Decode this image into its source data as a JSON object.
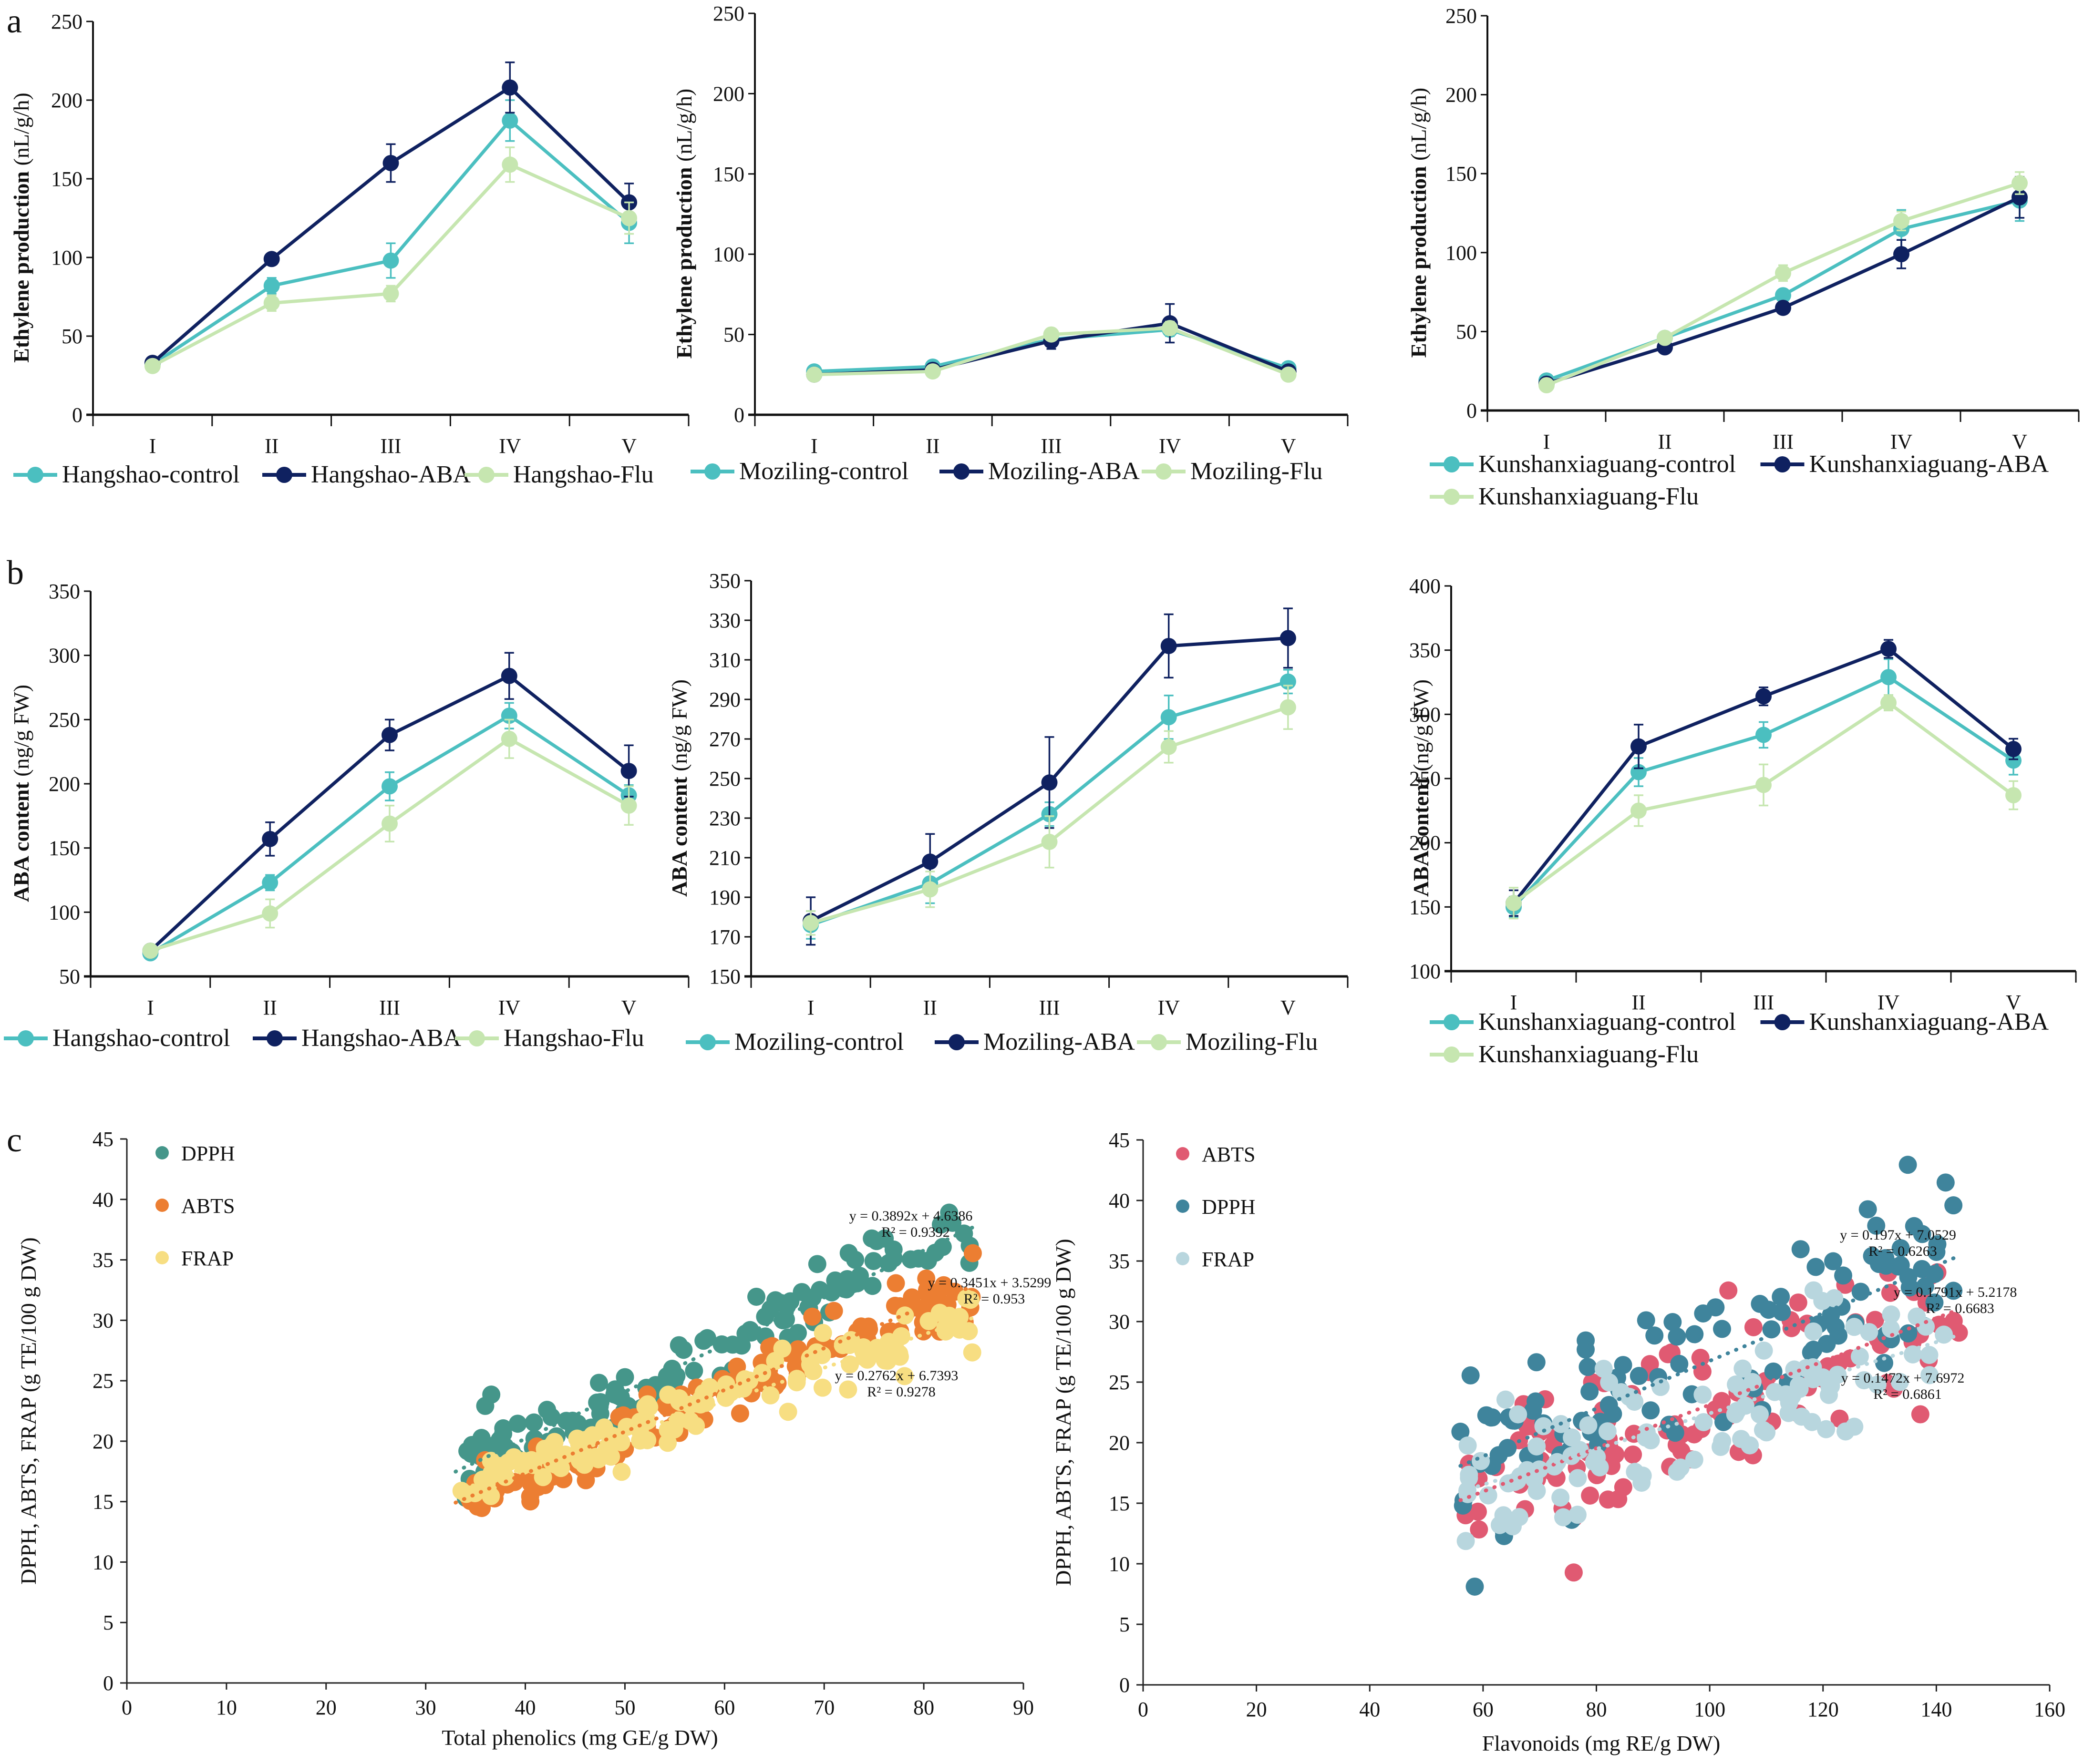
{
  "panel_labels": [
    "a",
    "b",
    "c"
  ],
  "line_series_colors": {
    "control": "#4BBFC0",
    "ABA": "#0F2160",
    "Flu": "#C6E6B0"
  },
  "chart_data": [
    {
      "id": "a1",
      "type": "line",
      "panel": "a",
      "ylabel_bold": "Ethylene production",
      "ylabel_unit": "(nL/g/h)",
      "categories": [
        "I",
        "II",
        "III",
        "IV",
        "V"
      ],
      "ylim": [
        0,
        250
      ],
      "yticks": [
        0,
        50,
        100,
        150,
        200,
        250
      ],
      "series": [
        {
          "name": "Hangshao-control",
          "key": "control",
          "values": [
            32,
            82,
            98,
            187,
            122
          ],
          "errors": [
            2,
            5,
            11,
            13,
            13
          ]
        },
        {
          "name": "Hangshao-ABA",
          "key": "ABA",
          "values": [
            33,
            99,
            160,
            208,
            135
          ],
          "errors": [
            2,
            3,
            12,
            16,
            12
          ]
        },
        {
          "name": "Hangshao-Flu",
          "key": "Flu",
          "values": [
            31,
            71,
            77,
            159,
            125
          ],
          "errors": [
            2,
            5,
            5,
            11,
            10
          ]
        }
      ],
      "legend": [
        "Hangshao-control",
        "Hangshao-ABA",
        "Hangshao-Flu"
      ]
    },
    {
      "id": "a2",
      "type": "line",
      "panel": "a",
      "ylabel_bold": "Ethylene production",
      "ylabel_unit": "(nL/g/h)",
      "categories": [
        "I",
        "II",
        "III",
        "IV",
        "V"
      ],
      "ylim": [
        0,
        250
      ],
      "yticks": [
        0,
        50,
        100,
        150,
        200,
        250
      ],
      "series": [
        {
          "name": "Moziling-control",
          "key": "control",
          "values": [
            27,
            30,
            47,
            53,
            29
          ],
          "errors": [
            2,
            2,
            3,
            4,
            2
          ]
        },
        {
          "name": "Moziling-ABA",
          "key": "ABA",
          "values": [
            25,
            28,
            46,
            57,
            27
          ],
          "errors": [
            2,
            2,
            5,
            12,
            2
          ]
        },
        {
          "name": "Moziling-Flu",
          "key": "Flu",
          "values": [
            25,
            27,
            50,
            54,
            25
          ],
          "errors": [
            2,
            2,
            3,
            4,
            2
          ]
        }
      ],
      "legend": [
        "Moziling-control",
        "Moziling-ABA",
        "Moziling-Flu"
      ]
    },
    {
      "id": "a3",
      "type": "line",
      "panel": "a",
      "ylabel_bold": "Ethylene production",
      "ylabel_unit": "(nL/g/h)",
      "categories": [
        "I",
        "II",
        "III",
        "IV",
        "V"
      ],
      "ylim": [
        0,
        250
      ],
      "yticks": [
        0,
        50,
        100,
        150,
        200,
        250
      ],
      "series": [
        {
          "name": "Kunshanxiaguang-control",
          "key": "control",
          "values": [
            19,
            46,
            73,
            115,
            133
          ],
          "errors": [
            2,
            2,
            3,
            12,
            13
          ]
        },
        {
          "name": "Kunshanxiaguang-ABA",
          "key": "ABA",
          "values": [
            17,
            40,
            65,
            99,
            135
          ],
          "errors": [
            2,
            2,
            2,
            9,
            13
          ]
        },
        {
          "name": "Kunshanxiaguang-Flu",
          "key": "Flu",
          "values": [
            16,
            46,
            87,
            120,
            144
          ],
          "errors": [
            2,
            2,
            5,
            6,
            7
          ]
        }
      ],
      "legend": [
        "Kunshanxiaguang-control",
        "Kunshanxiaguang-ABA",
        "Kunshanxiaguang-Flu"
      ]
    },
    {
      "id": "b1",
      "type": "line",
      "panel": "b",
      "ylabel_bold": "ABA content",
      "ylabel_unit": "(ng/g FW)",
      "categories": [
        "I",
        "II",
        "III",
        "IV",
        "V"
      ],
      "ylim": [
        50,
        350
      ],
      "yticks": [
        50,
        100,
        150,
        200,
        250,
        300,
        350
      ],
      "series": [
        {
          "name": "Hangshao-control",
          "key": "control",
          "values": [
            68,
            123,
            198,
            253,
            191
          ],
          "errors": [
            3,
            6,
            11,
            10,
            8
          ]
        },
        {
          "name": "Hangshao-ABA",
          "key": "ABA",
          "values": [
            70,
            157,
            238,
            284,
            210
          ],
          "errors": [
            3,
            13,
            12,
            18,
            20
          ]
        },
        {
          "name": "Hangshao-Flu",
          "key": "Flu",
          "values": [
            70,
            99,
            169,
            235,
            183
          ],
          "errors": [
            3,
            11,
            14,
            15,
            15
          ]
        }
      ],
      "legend": [
        "Hangshao-control",
        "Hangshao-ABA",
        "Hangshao-Flu"
      ]
    },
    {
      "id": "b2",
      "type": "line",
      "panel": "b",
      "ylabel_bold": "ABA content",
      "ylabel_unit": "(ng/g FW)",
      "categories": [
        "I",
        "II",
        "III",
        "IV",
        "V"
      ],
      "ylim": [
        150,
        350
      ],
      "yticks": [
        150,
        170,
        190,
        210,
        230,
        250,
        270,
        290,
        310,
        330,
        350
      ],
      "series": [
        {
          "name": "Moziling-control",
          "key": "control",
          "values": [
            176,
            197,
            232,
            281,
            299
          ],
          "errors": [
            7,
            10,
            6,
            11,
            6
          ]
        },
        {
          "name": "Moziling-ABA",
          "key": "ABA",
          "values": [
            178,
            208,
            248,
            317,
            321
          ],
          "errors": [
            12,
            14,
            23,
            16,
            15
          ]
        },
        {
          "name": "Moziling-Flu",
          "key": "Flu",
          "values": [
            177,
            194,
            218,
            266,
            286
          ],
          "errors": [
            6,
            9,
            13,
            8,
            11
          ]
        }
      ],
      "legend": [
        "Moziling-control",
        "Moziling-ABA",
        "Moziling-Flu"
      ]
    },
    {
      "id": "b3",
      "type": "line",
      "panel": "b",
      "ylabel_bold": "ABA content",
      "ylabel_unit": "(ng/g FW)",
      "categories": [
        "I",
        "II",
        "III",
        "IV",
        "V"
      ],
      "ylim": [
        100,
        400
      ],
      "yticks": [
        100,
        150,
        200,
        250,
        300,
        350,
        400
      ],
      "series": [
        {
          "name": "Kunshanxiaguang-control",
          "key": "control",
          "values": [
            150,
            255,
            284,
            329,
            264
          ],
          "errors": [
            8,
            11,
            10,
            14,
            11
          ]
        },
        {
          "name": "Kunshanxiaguang-ABA",
          "key": "ABA",
          "values": [
            153,
            275,
            314,
            351,
            273
          ],
          "errors": [
            10,
            17,
            7,
            7,
            8
          ]
        },
        {
          "name": "Kunshanxiaguang-Flu",
          "key": "Flu",
          "values": [
            153,
            225,
            245,
            309,
            237
          ],
          "errors": [
            12,
            12,
            16,
            6,
            11
          ]
        }
      ],
      "legend": [
        "Kunshanxiaguang-control",
        "Kunshanxiaguang-ABA",
        "Kunshanxiaguang-Flu"
      ]
    },
    {
      "id": "c1",
      "type": "scatter",
      "panel": "c",
      "xlabel": "Total phenolics (mg GE/g DW)",
      "ylabel": "DPPH, ABTS, FRAP (g TE/100 g DW)",
      "xlim": [
        0,
        90
      ],
      "xticks": [
        0,
        10,
        20,
        30,
        40,
        50,
        60,
        70,
        80,
        90
      ],
      "ylim": [
        0,
        45
      ],
      "yticks": [
        0,
        5,
        10,
        15,
        20,
        25,
        30,
        35,
        40,
        45
      ],
      "grid": false,
      "legend_position": "top-left",
      "series": [
        {
          "name": "DPPH",
          "color": "#45968A",
          "trendline": {
            "slope": 0.3892,
            "intercept": 4.6386,
            "x_range": [
              33,
              85
            ]
          },
          "equation": "y = 0.3892x + 4.6386",
          "r2": "R² = 0.9392",
          "seed": 11,
          "n": 130,
          "noise": 1.4,
          "x_range": [
            33,
            85
          ]
        },
        {
          "name": "ABTS",
          "color": "#EC7E32",
          "trendline": {
            "slope": 0.3451,
            "intercept": 3.5299,
            "x_range": [
              33,
              85
            ]
          },
          "equation": "y = 0.3451x + 3.5299",
          "r2": "R² = 0.953",
          "seed": 23,
          "n": 130,
          "noise": 1.2,
          "x_range": [
            33,
            85
          ]
        },
        {
          "name": "FRAP",
          "color": "#F7DE82",
          "trendline": {
            "slope": 0.2762,
            "intercept": 6.7393,
            "x_range": [
              33,
              85
            ]
          },
          "equation": "y = 0.2762x + 6.7393",
          "r2": "R² = 0.9278",
          "seed": 37,
          "n": 130,
          "noise": 1.2,
          "x_range": [
            33,
            85
          ]
        }
      ]
    },
    {
      "id": "c2",
      "type": "scatter",
      "panel": "c",
      "xlabel": "Flavonoids (mg RE/g DW)",
      "ylabel": "DPPH, ABTS, FRAP (g TE/100 g DW)",
      "xlim": [
        0,
        160
      ],
      "xticks": [
        0,
        20,
        40,
        60,
        80,
        100,
        120,
        140,
        160
      ],
      "ylim": [
        0,
        45
      ],
      "yticks": [
        0,
        5,
        10,
        15,
        20,
        25,
        30,
        35,
        40,
        45
      ],
      "grid": false,
      "legend_position": "top-left",
      "series": [
        {
          "name": "ABTS",
          "color": "#E05A72",
          "trendline": {
            "slope": 0.1791,
            "intercept": 5.2178,
            "x_range": [
              56,
              144
            ]
          },
          "equation": "y = 0.1791x + 5.2178",
          "r2": "R² = 0.6683",
          "seed": 51,
          "n": 110,
          "noise": 3.0,
          "x_range": [
            56,
            144
          ]
        },
        {
          "name": "DPPH",
          "color": "#3F849C",
          "trendline": {
            "slope": 0.197,
            "intercept": 7.0529,
            "x_range": [
              56,
              144
            ]
          },
          "equation": "y = 0.197x + 7.0529",
          "r2": "R² = 0.6263",
          "seed": 67,
          "n": 110,
          "noise": 3.6,
          "x_range": [
            56,
            144
          ]
        },
        {
          "name": "FRAP",
          "color": "#B8D6DE",
          "trendline": {
            "slope": 0.1472,
            "intercept": 7.6972,
            "x_range": [
              56,
              144
            ]
          },
          "equation": "y = 0.1472x + 7.6972",
          "r2": "R² = 0.6861",
          "seed": 83,
          "n": 110,
          "noise": 2.6,
          "x_range": [
            56,
            144
          ]
        }
      ]
    }
  ]
}
